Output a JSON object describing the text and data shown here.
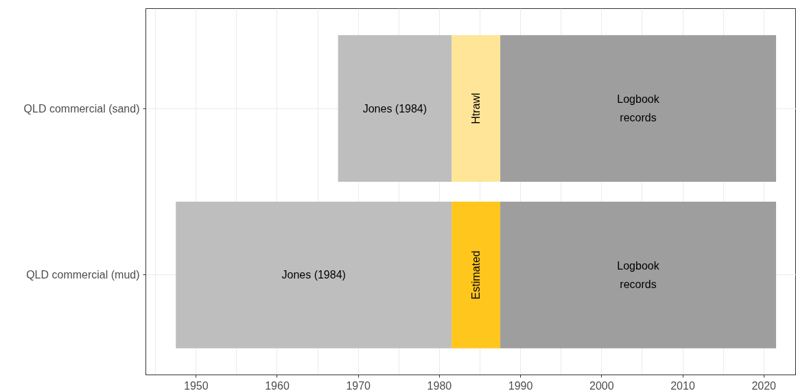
{
  "chart_data": {
    "type": "bar",
    "orientation": "horizontal",
    "categories": [
      "QLD commercial (sand)",
      "QLD commercial (mud)"
    ],
    "series": [
      {
        "name": "Jones (1984)",
        "color": "#bebebe",
        "base": [
          1967.5,
          1947.5
        ],
        "values": [
          14,
          34
        ]
      },
      {
        "name": "Htrawl",
        "color": "#ffe598",
        "base": [
          1981.5,
          null
        ],
        "values": [
          6,
          null
        ]
      },
      {
        "name": "Estimated",
        "color": "#ffc61e",
        "base": [
          null,
          1981.5
        ],
        "values": [
          null,
          6
        ]
      },
      {
        "name": "Logbook\nrecords",
        "color": "#9e9e9e",
        "base": [
          1987.5,
          1987.5
        ],
        "values": [
          34,
          34
        ]
      }
    ],
    "xlim": [
      1943.8,
      2024.0
    ],
    "xticks": [
      1950,
      1960,
      1970,
      1980,
      1990,
      2000,
      2010,
      2020
    ],
    "grid": true
  }
}
